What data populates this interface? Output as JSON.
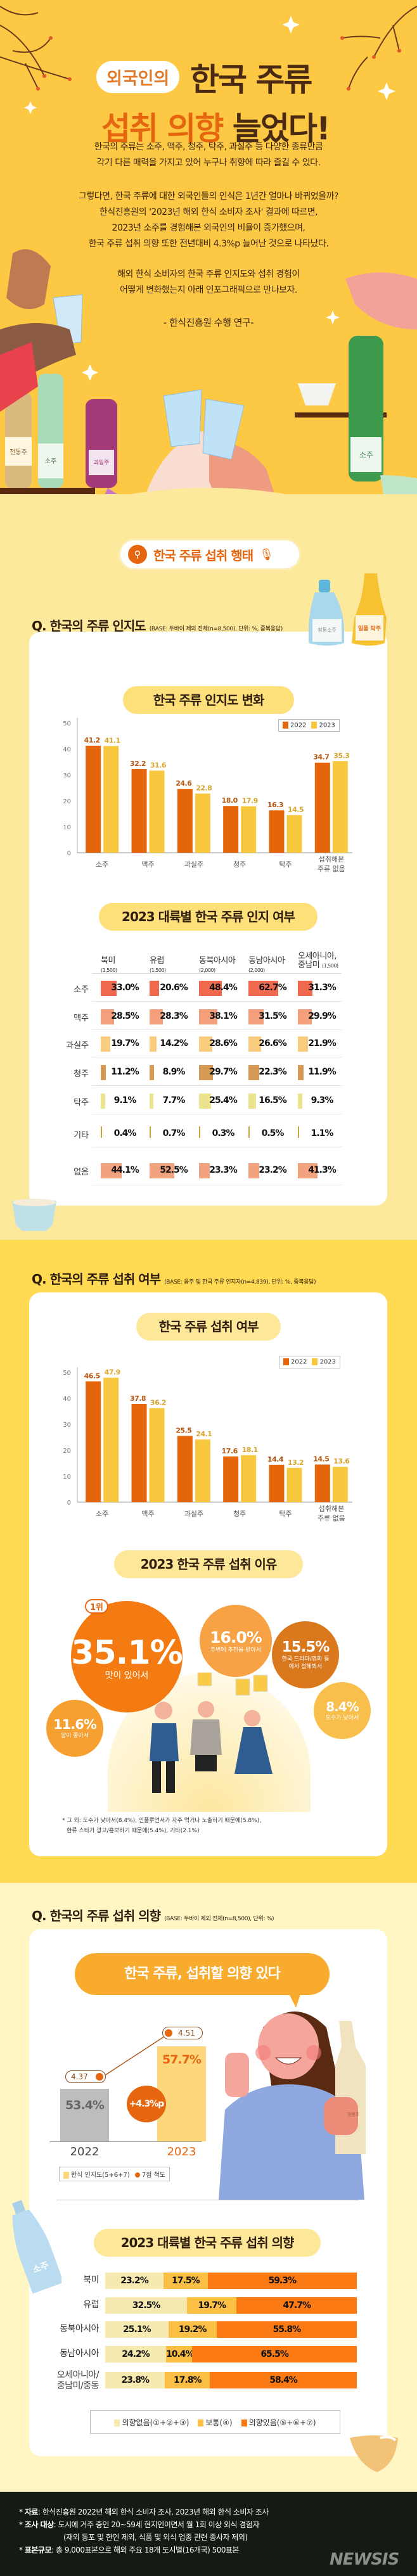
{
  "header": {
    "badge": "외국인의",
    "title_line1": "한국 주류",
    "title_line2_highlight": "섭취 의향",
    "title_line2_rest": "늘었다!",
    "intro_paragraphs": [
      [
        "한국의 주류는 소주, 맥주, 청주, 탁주, 과실주 등 다양한 종류만큼",
        "각기 다른 매력을 가지고 있어 누구나 취향에 따라 즐길 수 있다."
      ],
      [
        "그렇다면, 한국 주류에 대한 외국인들의 인식은 1년간 얼마나 바뀌었을까?",
        "한식진흥원의 '2023년 해외 한식 소비자 조사' 결과에 따르면,",
        "2023년 소주를 경험해본 외국인의 비율이 증가했으며,",
        "한국 주류 섭취 의향 또한 전년대비 4.3%p 늘어난 것으로 나타났다."
      ],
      [
        "해외 한식 소비자의 한국 주류 인지도와 섭취 경험이",
        "어떻게 변화했는지 아래 인포그래픽으로 만나보자."
      ]
    ],
    "credit": "- 한식진흥원 수행 연구-",
    "bottle_labels": [
      "전통주",
      "소주",
      "과일주",
      "소주"
    ],
    "section_button": "한국 주류 섭취 행태",
    "section_button_icons": [
      "search-icon",
      "microphone-icon"
    ]
  },
  "section1": {
    "question": "Q. 한국의 주류 인지도",
    "base": "(BASE: 두바이 제외 전체(n=8,500), 단위: %, 중복응답)",
    "bottle_labels": [
      "정통소주",
      "일품 탁주"
    ],
    "chart_title": "한국 주류 인지도 변화",
    "table_title": "2023 대륙별 한국 주류 인지 여부",
    "table": {
      "columns": [
        {
          "name": "북미",
          "n": "(1,500)"
        },
        {
          "name": "유럽",
          "n": "(1,500)"
        },
        {
          "name": "동북아시아",
          "n": "(2,000)"
        },
        {
          "name": "동남아시아",
          "n": "(2,000)"
        },
        {
          "name": "오세아니아, 중남미",
          "n": "(1,500)"
        }
      ],
      "rows": [
        {
          "label": "소주",
          "color": "#f0694e",
          "values": [
            33.0,
            20.6,
            48.4,
            62.7,
            31.3
          ]
        },
        {
          "label": "맥주",
          "color": "#f5a07c",
          "values": [
            28.5,
            28.3,
            38.1,
            31.5,
            29.9
          ]
        },
        {
          "label": "과실주",
          "color": "#f9cc7e",
          "values": [
            19.7,
            14.2,
            28.6,
            26.6,
            21.9
          ]
        },
        {
          "label": "청주",
          "color": "#d59a55",
          "values": [
            11.2,
            8.9,
            29.7,
            22.3,
            11.9
          ]
        },
        {
          "label": "탁주",
          "color": "#ebe38e",
          "values": [
            9.1,
            7.7,
            25.4,
            16.5,
            9.3
          ]
        },
        {
          "label": "기타",
          "color": "#c9a53c",
          "values": [
            0.4,
            0.7,
            0.3,
            0.5,
            1.1
          ]
        },
        {
          "label": "없음",
          "color": "#f1a27f",
          "values": [
            44.1,
            52.5,
            23.3,
            23.2,
            41.3
          ]
        }
      ]
    }
  },
  "section2": {
    "question": "Q. 한국의 주류 섭취 여부",
    "base": "(BASE: 음주 및 한국 주류 인지자(n=4,839), 단위: %, 중복응답)",
    "chart_title": "한국 주류 섭취 여부",
    "reasons_title": "2023 한국 주류 섭취 이유",
    "rank_badge": "1위",
    "reasons": [
      {
        "value": "35.1%",
        "label": "맛이 있어서",
        "color": "#f47a12"
      },
      {
        "value": "16.0%",
        "label": "주변에 추천을 받아서",
        "color": "#f7a245"
      },
      {
        "value": "15.5%",
        "label": "한국 드라마/영화 등에서 접해봐서",
        "color": "#d9781c"
      },
      {
        "value": "8.4%",
        "label": "도수가 낮아서",
        "color": "#f9bf4c"
      },
      {
        "value": "11.6%",
        "label": "향이 좋아서",
        "color": "#f5a030"
      }
    ],
    "note_lines": [
      "* 그 외: 도수가 낮아서(8.4%), 인플루언서가 자주 먹거나 노출하기 때문에(5.8%),",
      "한류 스타가 광고/홍보하기 때문에(5.4%), 기타(2.1%)"
    ]
  },
  "section3": {
    "question": "Q. 한국의 주류 섭취 의향",
    "base": "(BASE: 두바이 제외 전체(n=8,500), 단위: %)",
    "speech": "한국 주류, 섭취할 의향 있다",
    "years": [
      "2022",
      "2023"
    ],
    "percents": [
      "53.4%",
      "57.7%"
    ],
    "percent_values": [
      53.4,
      57.7
    ],
    "scores": [
      "4.37",
      "4.51"
    ],
    "change": "+4.3%p",
    "legend": [
      "한식 인지도(5+6+7)",
      "7점 척도"
    ],
    "bottle_label": "정통주",
    "bottle_label2": "소주",
    "stack_title": "2023 대륙별 한국 주류 섭취 의향",
    "stack_colors": [
      "#f7eab0",
      "#fbbf45",
      "#fb7a14"
    ],
    "stack_rows": [
      {
        "label": "북미",
        "values": [
          23.2,
          17.5,
          59.3
        ]
      },
      {
        "label": "유럽",
        "values": [
          32.5,
          19.7,
          47.7
        ]
      },
      {
        "label": "동북아시아",
        "values": [
          25.1,
          19.2,
          55.8
        ]
      },
      {
        "label": "동남아시아",
        "values": [
          24.2,
          10.4,
          65.5
        ]
      },
      {
        "label": "오세아니아/ 중남미/중동",
        "values": [
          23.8,
          17.8,
          58.4
        ]
      }
    ],
    "stack_legend": [
      "의향없음(①+②+③)",
      "보통(④)",
      "의향있음(⑤+⑥+⑦)"
    ]
  },
  "footer": {
    "lines": [
      {
        "key": "자료",
        "text": ": 한식진흥원 2022년 해외 한식 소비자 조사, 2023년 해외 한식 소비자 조사"
      },
      {
        "key": "조사 대상",
        "text": ": 도시에 거주 중인 20~59세 현지인이면서 월 1회 이상 외식 경험자"
      },
      {
        "key": "",
        "text": "(재외 동포 및 한인 제외, 식품 및 외식 업종 관련 종사자 제외)"
      },
      {
        "key": "표본규모",
        "text": ": 총 9,000표본으로 해외 주요 18개 도시별(16개국) 500표본"
      }
    ],
    "logo": "NEWSIS"
  },
  "chart_data": [
    {
      "type": "bar",
      "title": "한국 주류 인지도 변화",
      "categories": [
        "소주",
        "맥주",
        "과실주",
        "청주",
        "탁주",
        "섭취해본 주류 없음"
      ],
      "series": [
        {
          "name": "2022",
          "color": "#e5660a",
          "values": [
            41.2,
            32.2,
            24.6,
            18.0,
            16.3,
            34.7
          ]
        },
        {
          "name": "2023",
          "color": "#f7c83e",
          "values": [
            41.1,
            31.6,
            22.8,
            17.9,
            14.5,
            35.3
          ]
        }
      ],
      "yticks": [
        0,
        10,
        20,
        30,
        40,
        50
      ],
      "ylim": [
        0,
        50
      ],
      "legend": "top-right",
      "grid": false
    },
    {
      "type": "bar",
      "title": "한국 주류 섭취 여부",
      "categories": [
        "소주",
        "맥주",
        "과실주",
        "청주",
        "탁주",
        "섭취해본 주류 없음"
      ],
      "series": [
        {
          "name": "2022",
          "color": "#e5660a",
          "values": [
            46.5,
            37.8,
            25.5,
            17.6,
            14.4,
            14.5
          ]
        },
        {
          "name": "2023",
          "color": "#f7c83e",
          "values": [
            47.9,
            36.2,
            24.1,
            18.1,
            13.2,
            13.6
          ]
        }
      ],
      "yticks": [
        0,
        10,
        20,
        30,
        40,
        50
      ],
      "ylim": [
        0,
        50
      ],
      "legend": "top-right",
      "grid": false
    }
  ]
}
